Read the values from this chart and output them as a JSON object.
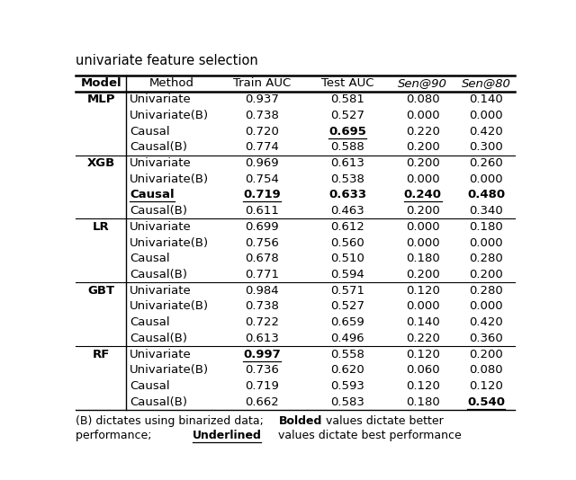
{
  "title": "univariate feature selection",
  "headers": [
    "Model",
    "Method",
    "Train AUC",
    "Test AUC",
    "Sen@90",
    "Sen@80"
  ],
  "rows": [
    {
      "model": "MLP",
      "method": "Univariate",
      "train": "0.937",
      "test": "0.581",
      "sen90": "0.080",
      "sen80": "0.140",
      "bold_model": true,
      "bold_method": false,
      "bold_train": false,
      "bold_test": false,
      "bold_s90": false,
      "bold_s80": false,
      "under_method": false,
      "under_train": false,
      "under_test": false,
      "under_s90": false,
      "under_s80": false
    },
    {
      "model": "",
      "method": "Univariate(B)",
      "train": "0.738",
      "test": "0.527",
      "sen90": "0.000",
      "sen80": "0.000",
      "bold_model": false,
      "bold_method": false,
      "bold_train": false,
      "bold_test": false,
      "bold_s90": false,
      "bold_s80": false,
      "under_method": false,
      "under_train": false,
      "under_test": false,
      "under_s90": false,
      "under_s80": false
    },
    {
      "model": "",
      "method": "Causal",
      "train": "0.720",
      "test": "0.695",
      "sen90": "0.220",
      "sen80": "0.420",
      "bold_model": false,
      "bold_method": false,
      "bold_train": false,
      "bold_test": true,
      "bold_s90": false,
      "bold_s80": false,
      "under_method": false,
      "under_train": false,
      "under_test": true,
      "under_s90": false,
      "under_s80": false
    },
    {
      "model": "",
      "method": "Causal(B)",
      "train": "0.774",
      "test": "0.588",
      "sen90": "0.200",
      "sen80": "0.300",
      "bold_model": false,
      "bold_method": false,
      "bold_train": false,
      "bold_test": false,
      "bold_s90": false,
      "bold_s80": false,
      "under_method": false,
      "under_train": false,
      "under_test": false,
      "under_s90": false,
      "under_s80": false
    },
    {
      "model": "XGB",
      "method": "Univariate",
      "train": "0.969",
      "test": "0.613",
      "sen90": "0.200",
      "sen80": "0.260",
      "bold_model": true,
      "bold_method": false,
      "bold_train": false,
      "bold_test": false,
      "bold_s90": false,
      "bold_s80": false,
      "under_method": false,
      "under_train": false,
      "under_test": false,
      "under_s90": false,
      "under_s80": false
    },
    {
      "model": "",
      "method": "Univariate(B)",
      "train": "0.754",
      "test": "0.538",
      "sen90": "0.000",
      "sen80": "0.000",
      "bold_model": false,
      "bold_method": false,
      "bold_train": false,
      "bold_test": false,
      "bold_s90": false,
      "bold_s80": false,
      "under_method": false,
      "under_train": false,
      "under_test": false,
      "under_s90": false,
      "under_s80": false
    },
    {
      "model": "",
      "method": "Causal",
      "train": "0.719",
      "test": "0.633",
      "sen90": "0.240",
      "sen80": "0.480",
      "bold_model": false,
      "bold_method": true,
      "bold_train": true,
      "bold_test": true,
      "bold_s90": true,
      "bold_s80": true,
      "under_method": true,
      "under_train": true,
      "under_test": false,
      "under_s90": true,
      "under_s80": false
    },
    {
      "model": "",
      "method": "Causal(B)",
      "train": "0.611",
      "test": "0.463",
      "sen90": "0.200",
      "sen80": "0.340",
      "bold_model": false,
      "bold_method": false,
      "bold_train": false,
      "bold_test": false,
      "bold_s90": false,
      "bold_s80": false,
      "under_method": false,
      "under_train": false,
      "under_test": false,
      "under_s90": false,
      "under_s80": false
    },
    {
      "model": "LR",
      "method": "Univariate",
      "train": "0.699",
      "test": "0.612",
      "sen90": "0.000",
      "sen80": "0.180",
      "bold_model": true,
      "bold_method": false,
      "bold_train": false,
      "bold_test": false,
      "bold_s90": false,
      "bold_s80": false,
      "under_method": false,
      "under_train": false,
      "under_test": false,
      "under_s90": false,
      "under_s80": false
    },
    {
      "model": "",
      "method": "Univariate(B)",
      "train": "0.756",
      "test": "0.560",
      "sen90": "0.000",
      "sen80": "0.000",
      "bold_model": false,
      "bold_method": false,
      "bold_train": false,
      "bold_test": false,
      "bold_s90": false,
      "bold_s80": false,
      "under_method": false,
      "under_train": false,
      "under_test": false,
      "under_s90": false,
      "under_s80": false
    },
    {
      "model": "",
      "method": "Causal",
      "train": "0.678",
      "test": "0.510",
      "sen90": "0.180",
      "sen80": "0.280",
      "bold_model": false,
      "bold_method": false,
      "bold_train": false,
      "bold_test": false,
      "bold_s90": false,
      "bold_s80": false,
      "under_method": false,
      "under_train": false,
      "under_test": false,
      "under_s90": false,
      "under_s80": false
    },
    {
      "model": "",
      "method": "Causal(B)",
      "train": "0.771",
      "test": "0.594",
      "sen90": "0.200",
      "sen80": "0.200",
      "bold_model": false,
      "bold_method": false,
      "bold_train": false,
      "bold_test": false,
      "bold_s90": false,
      "bold_s80": false,
      "under_method": false,
      "under_train": false,
      "under_test": false,
      "under_s90": false,
      "under_s80": false
    },
    {
      "model": "GBT",
      "method": "Univariate",
      "train": "0.984",
      "test": "0.571",
      "sen90": "0.120",
      "sen80": "0.280",
      "bold_model": true,
      "bold_method": false,
      "bold_train": false,
      "bold_test": false,
      "bold_s90": false,
      "bold_s80": false,
      "under_method": false,
      "under_train": false,
      "under_test": false,
      "under_s90": false,
      "under_s80": false
    },
    {
      "model": "",
      "method": "Univariate(B)",
      "train": "0.738",
      "test": "0.527",
      "sen90": "0.000",
      "sen80": "0.000",
      "bold_model": false,
      "bold_method": false,
      "bold_train": false,
      "bold_test": false,
      "bold_s90": false,
      "bold_s80": false,
      "under_method": false,
      "under_train": false,
      "under_test": false,
      "under_s90": false,
      "under_s80": false
    },
    {
      "model": "",
      "method": "Causal",
      "train": "0.722",
      "test": "0.659",
      "sen90": "0.140",
      "sen80": "0.420",
      "bold_model": false,
      "bold_method": false,
      "bold_train": false,
      "bold_test": false,
      "bold_s90": false,
      "bold_s80": false,
      "under_method": false,
      "under_train": false,
      "under_test": false,
      "under_s90": false,
      "under_s80": false
    },
    {
      "model": "",
      "method": "Causal(B)",
      "train": "0.613",
      "test": "0.496",
      "sen90": "0.220",
      "sen80": "0.360",
      "bold_model": false,
      "bold_method": false,
      "bold_train": false,
      "bold_test": false,
      "bold_s90": false,
      "bold_s80": false,
      "under_method": false,
      "under_train": false,
      "under_test": false,
      "under_s90": false,
      "under_s80": false
    },
    {
      "model": "RF",
      "method": "Univariate",
      "train": "0.997",
      "test": "0.558",
      "sen90": "0.120",
      "sen80": "0.200",
      "bold_model": true,
      "bold_method": false,
      "bold_train": true,
      "bold_test": false,
      "bold_s90": false,
      "bold_s80": false,
      "under_method": false,
      "under_train": true,
      "under_test": false,
      "under_s90": false,
      "under_s80": false
    },
    {
      "model": "",
      "method": "Univariate(B)",
      "train": "0.736",
      "test": "0.620",
      "sen90": "0.060",
      "sen80": "0.080",
      "bold_model": false,
      "bold_method": false,
      "bold_train": false,
      "bold_test": false,
      "bold_s90": false,
      "bold_s80": false,
      "under_method": false,
      "under_train": false,
      "under_test": false,
      "under_s90": false,
      "under_s80": false
    },
    {
      "model": "",
      "method": "Causal",
      "train": "0.719",
      "test": "0.593",
      "sen90": "0.120",
      "sen80": "0.120",
      "bold_model": false,
      "bold_method": false,
      "bold_train": false,
      "bold_test": false,
      "bold_s90": false,
      "bold_s80": false,
      "under_method": false,
      "under_train": false,
      "under_test": false,
      "under_s90": false,
      "under_s80": false
    },
    {
      "model": "",
      "method": "Causal(B)",
      "train": "0.662",
      "test": "0.583",
      "sen90": "0.180",
      "sen80": "0.540",
      "bold_model": false,
      "bold_method": false,
      "bold_train": false,
      "bold_test": false,
      "bold_s90": false,
      "bold_s80": true,
      "under_method": false,
      "under_train": false,
      "under_test": false,
      "under_s90": false,
      "under_s80": true
    }
  ],
  "group_dividers": [
    4,
    8,
    12,
    16
  ],
  "fontsize_title": 10.5,
  "fontsize_header": 9.5,
  "fontsize_cell": 9.5,
  "fontsize_footer": 9.0
}
